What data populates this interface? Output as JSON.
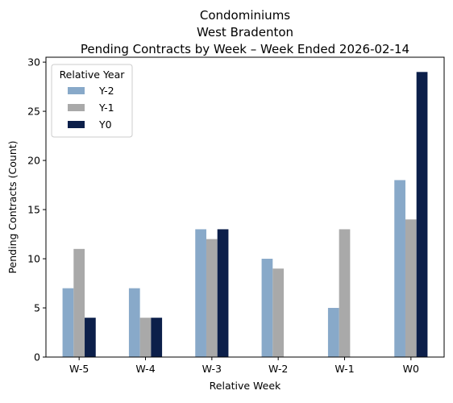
{
  "chart_data": {
    "type": "bar",
    "title": "Condominiums",
    "subtitle": "West Bradenton",
    "subtitle2": "Pending Contracts by Week – Week Ended 2026-02-14",
    "xlabel": "Relative Week",
    "ylabel": "Pending Contracts (Count)",
    "categories": [
      "W-5",
      "W-4",
      "W-3",
      "W-2",
      "W-1",
      "W0"
    ],
    "ylim": [
      0,
      30.5
    ],
    "yticks": [
      0,
      5,
      10,
      15,
      20,
      25,
      30
    ],
    "grid": false,
    "legend": {
      "title": "Relative Year",
      "placement": "top-left"
    },
    "series": [
      {
        "name": "Y-2",
        "color": "#88a9c9",
        "values": [
          7,
          7,
          13,
          10,
          5,
          18
        ]
      },
      {
        "name": "Y-1",
        "color": "#a9a9a9",
        "values": [
          11,
          4,
          12,
          9,
          13,
          14
        ]
      },
      {
        "name": "Y0",
        "color": "#0c1f4a",
        "values": [
          4,
          4,
          13,
          0,
          0,
          29
        ]
      }
    ]
  }
}
